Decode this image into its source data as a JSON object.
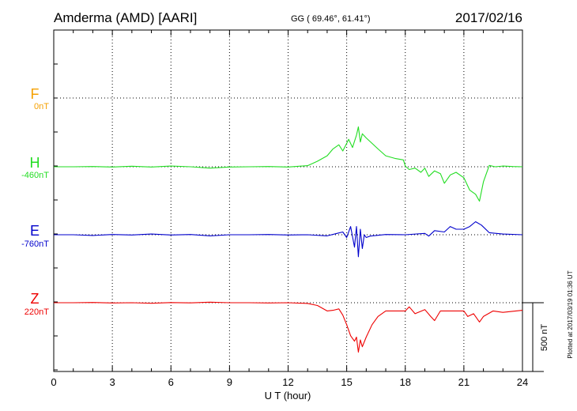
{
  "header": {
    "station": "Amderma (AMD)  [AARI]",
    "coords": "GG ( 69.46°,  61.41°)",
    "date": "2017/02/16"
  },
  "footer": {
    "plotted": "Plotted at 2017/03/19 01:36 UT"
  },
  "chart_data": {
    "type": "line",
    "xlabel": "U T (hour)",
    "xlim": [
      0,
      24
    ],
    "xticks": [
      "0",
      "3",
      "6",
      "9",
      "12",
      "15",
      "18",
      "21",
      "24"
    ],
    "grid": true,
    "scale_bar": {
      "label": "500 nT",
      "value_nT": 500
    },
    "series": [
      {
        "name": "F",
        "baseline_label": "0nT",
        "color": "#f5a000",
        "x": [],
        "y": []
      },
      {
        "name": "H",
        "baseline_label": "-460nT",
        "color": "#22dd22",
        "x": [
          0,
          1,
          2,
          3,
          4,
          5,
          6,
          7,
          8,
          9,
          10,
          11,
          12,
          13,
          13.5,
          14,
          14.3,
          14.6,
          14.8,
          15.0,
          15.1,
          15.3,
          15.5,
          15.6,
          15.7,
          15.8,
          16.0,
          16.3,
          16.6,
          17.0,
          17.5,
          17.9,
          18.0,
          18.2,
          18.5,
          18.8,
          19.0,
          19.2,
          19.5,
          19.8,
          20.0,
          20.3,
          20.6,
          21.0,
          21.3,
          21.6,
          21.8,
          22.0,
          22.3,
          22.6,
          23.0,
          23.5,
          24
        ],
        "y": [
          -460,
          -460,
          -458,
          -462,
          -456,
          -462,
          -455,
          -460,
          -470,
          -462,
          -460,
          -458,
          -462,
          -452,
          -420,
          -380,
          -330,
          -300,
          -345,
          -290,
          -260,
          -320,
          -230,
          -170,
          -280,
          -220,
          -250,
          -290,
          -330,
          -380,
          -400,
          -410,
          -455,
          -480,
          -470,
          -500,
          -470,
          -530,
          -490,
          -510,
          -580,
          -520,
          -500,
          -540,
          -630,
          -660,
          -710,
          -570,
          -450,
          -460,
          -455,
          -458,
          -460
        ]
      },
      {
        "name": "E",
        "baseline_label": "-760nT",
        "color": "#0000cc",
        "x": [
          0,
          1,
          2,
          3,
          4,
          5,
          6,
          7,
          8,
          9,
          10,
          11,
          12,
          13,
          14,
          14.5,
          14.8,
          15.0,
          15.2,
          15.4,
          15.5,
          15.6,
          15.7,
          15.8,
          15.9,
          16.0,
          16.2,
          16.5,
          17,
          18,
          19,
          19.2,
          19.5,
          20,
          20.3,
          20.6,
          21,
          21.3,
          21.6,
          21.9,
          22.3,
          23,
          24
        ],
        "y": [
          -760,
          -760,
          -765,
          -758,
          -762,
          -755,
          -762,
          -758,
          -768,
          -760,
          -760,
          -758,
          -762,
          -760,
          -768,
          -750,
          -740,
          -780,
          -700,
          -850,
          -700,
          -920,
          -720,
          -860,
          -760,
          -780,
          -770,
          -765,
          -758,
          -760,
          -750,
          -770,
          -730,
          -740,
          -700,
          -720,
          -720,
          -700,
          -665,
          -690,
          -745,
          -755,
          -760
        ]
      },
      {
        "name": "Z",
        "baseline_label": "220nT",
        "color": "#ee0000",
        "x": [
          0,
          1,
          2,
          3,
          4,
          5,
          6,
          7,
          8,
          9,
          10,
          11,
          12,
          13,
          13.5,
          14,
          14.3,
          14.6,
          14.8,
          15.0,
          15.2,
          15.4,
          15.5,
          15.6,
          15.7,
          15.8,
          16.0,
          16.3,
          16.6,
          17,
          18,
          18.2,
          18.5,
          19.0,
          19.3,
          19.5,
          19.8,
          20,
          21,
          21.2,
          21.5,
          21.8,
          22.0,
          22.5,
          23,
          24
        ],
        "y": [
          220,
          220,
          222,
          218,
          220,
          216,
          221,
          219,
          224,
          220,
          220,
          218,
          220,
          215,
          200,
          160,
          165,
          175,
          130,
          60,
          -20,
          -60,
          -30,
          -140,
          -50,
          -100,
          -30,
          60,
          120,
          160,
          160,
          190,
          140,
          170,
          120,
          90,
          160,
          160,
          160,
          120,
          140,
          80,
          120,
          160,
          150,
          165
        ]
      }
    ]
  }
}
